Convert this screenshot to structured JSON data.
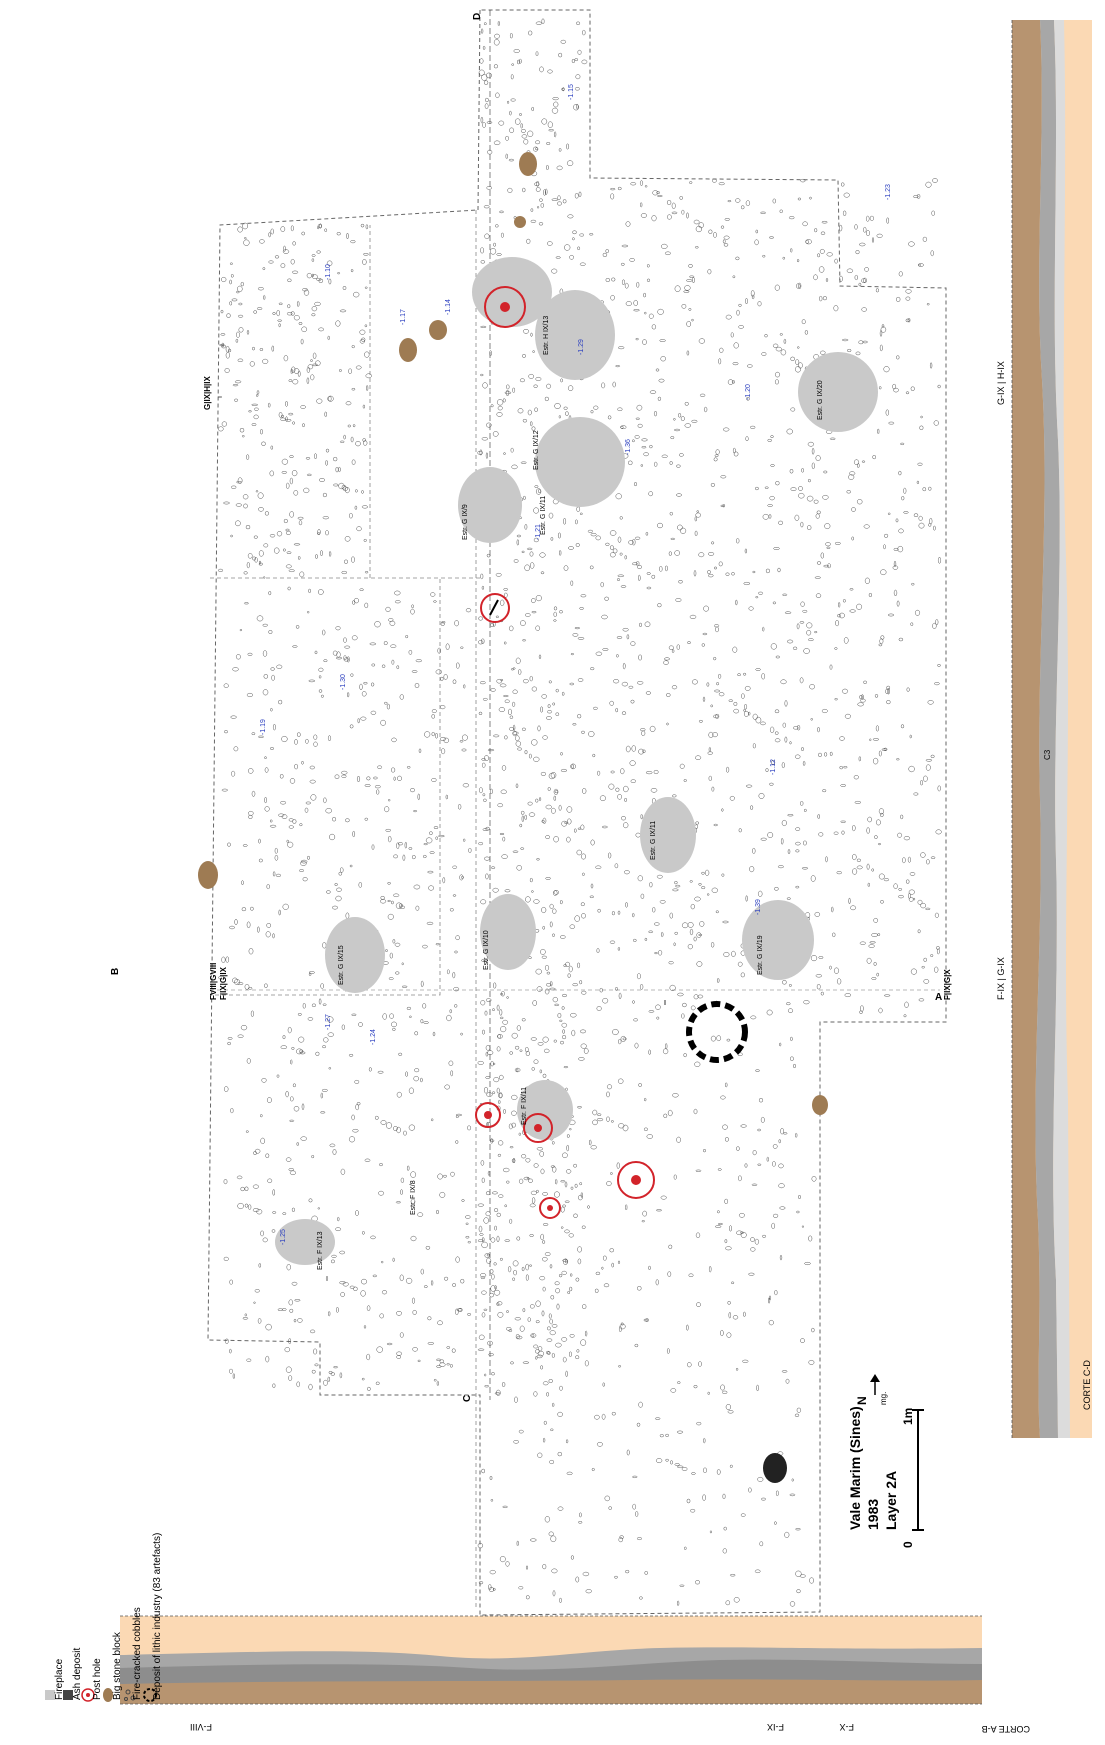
{
  "legend": {
    "items": [
      {
        "label": "Fireplace",
        "icon": "fireplace-icon"
      },
      {
        "label": "Ash deposit",
        "icon": "ash-deposit-icon"
      },
      {
        "label": "Post hole",
        "icon": "post-hole-icon"
      },
      {
        "label": "Big stone block",
        "icon": "stone-block-icon"
      },
      {
        "label": "Fire-cracked cobbles",
        "icon": "cobbles-icon"
      },
      {
        "label": "Deposit of lithic industry (83 artefacts)",
        "icon": "lithic-deposit-icon"
      }
    ]
  },
  "title": {
    "site": "Vale Marim (Sines)",
    "year": "1983",
    "layer": "Layer 2A",
    "north": "N",
    "north_sub": "mg.",
    "scale_start": "0",
    "scale_end": "1m"
  },
  "labels": {
    "section_ab": "CORTE A-B",
    "section_cd": "CORTE C-D",
    "point_a": "A",
    "point_b": "B",
    "point_c": "C",
    "point_d": "D",
    "grid_fviii_gviii": "FVIII|GVIII",
    "grid_fix_gix": "F|IX|G|IX",
    "grid_gix_hix": "G|IX|H|IX",
    "grid_fixgx": "F|IX|G|X",
    "ab_fviii": "F-VIII",
    "ab_fix": "F-IX",
    "ab_fx": "F-X",
    "cd_fix_gix": "F-IX | G-IX",
    "cd_gix_hix": "G-IX | H-IX",
    "c3": "C3"
  },
  "features": [
    "Estr. F IX/13",
    "Estr. F IX/8",
    "Estr. G IX/10",
    "Estr. G IX/11",
    "Estr. G IX/19",
    "Estr. G IX/9",
    "Estr. G IX/11",
    "Estr. G IX/12",
    "Estr. H IX/13",
    "Estr. G IX/20",
    "Estr. F IX/11",
    "Estr. G IX/15"
  ],
  "depths": [
    "-1.25",
    "-1.19",
    "-1.15",
    "-1.23",
    "-1.27",
    "-1.10",
    "-1.14",
    "-1.20",
    "-1.21",
    "-1.30",
    "-1.36",
    "-1.12",
    "-1.17",
    "-1.29",
    "-1.24",
    "-1.39"
  ],
  "colors": {
    "fireplace": "#c9c9c9",
    "stone": "#9e7b53",
    "posthole": "#d2232a",
    "sediment_sand": "#fbd9b4",
    "sediment_brown": "#b79470",
    "sediment_grey": "#a7a7a7",
    "sediment_light": "#dcdcdc",
    "depth_text": "#2b3fbf"
  }
}
